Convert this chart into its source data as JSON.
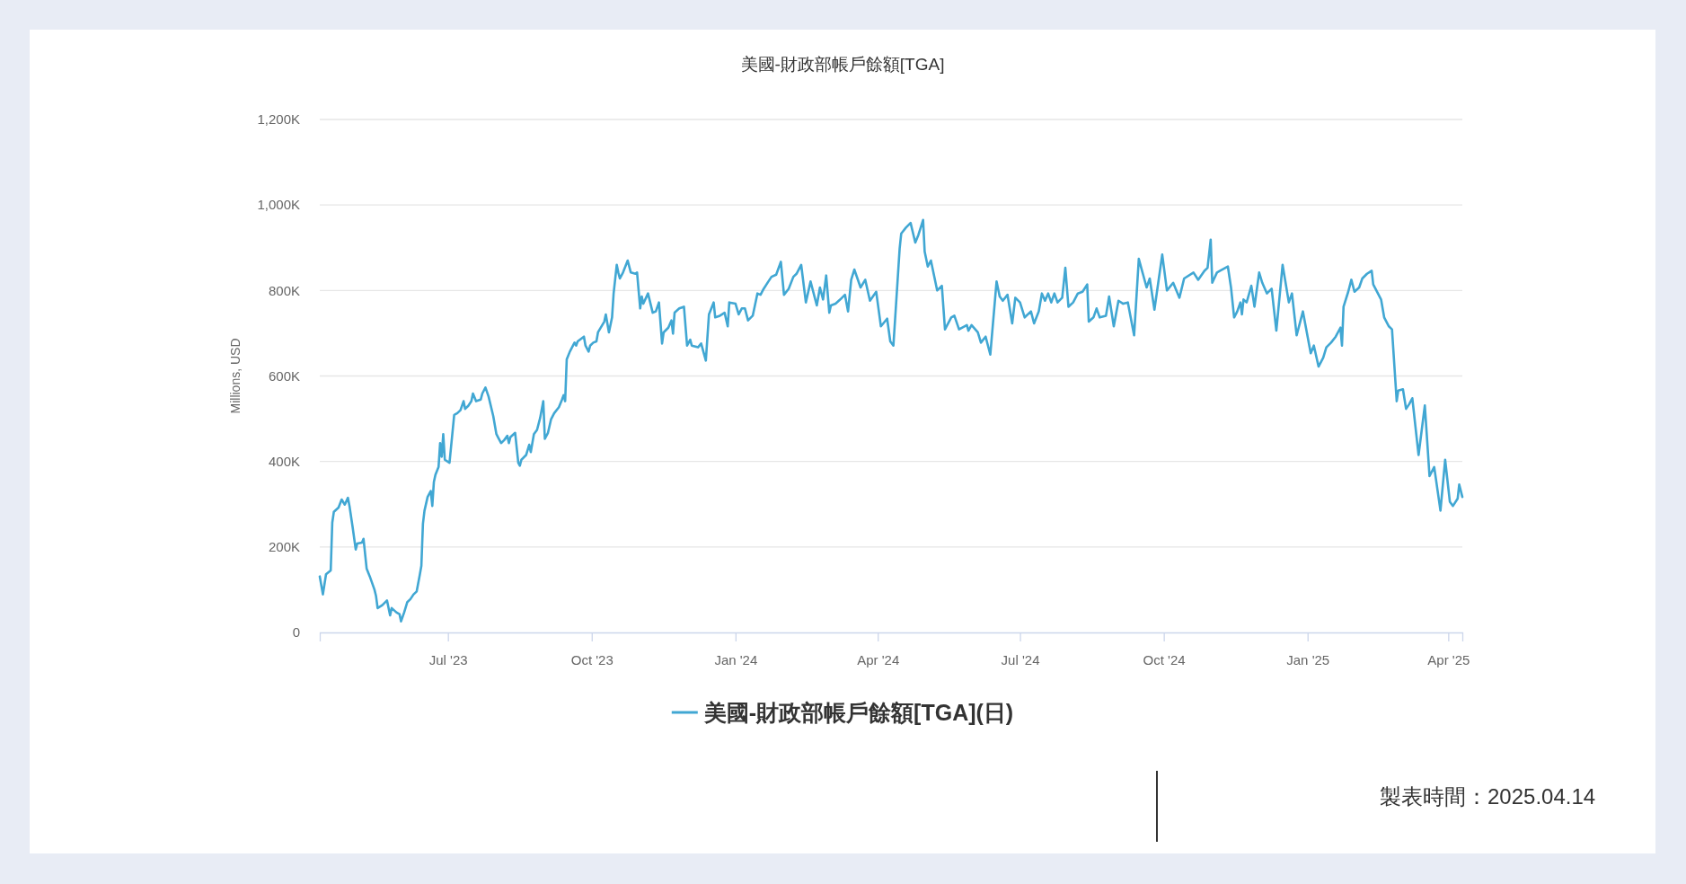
{
  "chart_data": {
    "type": "line",
    "title": "美國-財政部帳戶餘額[TGA]",
    "ylabel": "Millions, USD",
    "annotations": [
      "製表時間：2025.04.14"
    ],
    "x": [
      "2023-04-10",
      "2023-04-12",
      "2023-04-14",
      "2023-04-17",
      "2023-04-18",
      "2023-04-19",
      "2023-04-22",
      "2023-04-24",
      "2023-04-26",
      "2023-04-28",
      "2023-04-29",
      "2023-05-01",
      "2023-05-03",
      "2023-05-04",
      "2023-05-07",
      "2023-05-08",
      "2023-05-10",
      "2023-05-12",
      "2023-05-15",
      "2023-05-16",
      "2023-05-17",
      "2023-05-20",
      "2023-05-23",
      "2023-05-25",
      "2023-05-26",
      "2023-05-29",
      "2023-05-31",
      "2023-06-01",
      "2023-06-03",
      "2023-06-05",
      "2023-06-07",
      "2023-06-09",
      "2023-06-11",
      "2023-06-13",
      "2023-06-14",
      "2023-06-15",
      "2023-06-16",
      "2023-06-18",
      "2023-06-20",
      "2023-06-21",
      "2023-06-22",
      "2023-06-23",
      "2023-06-25",
      "2023-06-26",
      "2023-06-27",
      "2023-06-28",
      "2023-06-29",
      "2023-07-02",
      "2023-07-05",
      "2023-07-07",
      "2023-07-09",
      "2023-07-11",
      "2023-07-12",
      "2023-07-14",
      "2023-07-16",
      "2023-07-17",
      "2023-07-19",
      "2023-07-22",
      "2023-07-23",
      "2023-07-25",
      "2023-07-27",
      "2023-07-30",
      "2023-08-01",
      "2023-08-02",
      "2023-08-04",
      "2023-08-06",
      "2023-08-08",
      "2023-08-09",
      "2023-08-10",
      "2023-08-13",
      "2023-08-15",
      "2023-08-16",
      "2023-08-17",
      "2023-08-20",
      "2023-08-22",
      "2023-08-23",
      "2023-08-24",
      "2023-08-25",
      "2023-08-27",
      "2023-08-29",
      "2023-08-31",
      "2023-09-01",
      "2023-09-03",
      "2023-09-05",
      "2023-09-07",
      "2023-09-10",
      "2023-09-12",
      "2023-09-13",
      "2023-09-14",
      "2023-09-15",
      "2023-09-17",
      "2023-09-19",
      "2023-09-20",
      "2023-09-21",
      "2023-09-22",
      "2023-09-26",
      "2023-09-27",
      "2023-09-29",
      "2023-09-30",
      "2023-10-02",
      "2023-10-04",
      "2023-10-05",
      "2023-10-09",
      "2023-10-10",
      "2023-10-12",
      "2023-10-14",
      "2023-10-15",
      "2023-10-17",
      "2023-10-18",
      "2023-10-19",
      "2023-10-21",
      "2023-10-24",
      "2023-10-26",
      "2023-10-29",
      "2023-10-30",
      "2023-11-01",
      "2023-11-02",
      "2023-11-03",
      "2023-11-06",
      "2023-11-09",
      "2023-11-11",
      "2023-11-13",
      "2023-11-15",
      "2023-11-16",
      "2023-11-19",
      "2023-11-21",
      "2023-11-22",
      "2023-11-23",
      "2023-11-26",
      "2023-11-29",
      "2023-12-01",
      "2023-12-03",
      "2023-12-04",
      "2023-12-08",
      "2023-12-10",
      "2023-12-13",
      "2023-12-15",
      "2023-12-18",
      "2023-12-19",
      "2023-12-22",
      "2023-12-25",
      "2023-12-27",
      "2023-12-28",
      "2024-01-01",
      "2024-01-03",
      "2024-01-05",
      "2024-01-07",
      "2024-01-09",
      "2024-01-12",
      "2024-01-15",
      "2024-01-17",
      "2024-01-19",
      "2024-01-22",
      "2024-01-24",
      "2024-01-27",
      "2024-01-30",
      "2024-02-01",
      "2024-02-04",
      "2024-02-07",
      "2024-02-09",
      "2024-02-12",
      "2024-02-15",
      "2024-02-18",
      "2024-02-22",
      "2024-02-24",
      "2024-02-26",
      "2024-02-28",
      "2024-03-01",
      "2024-03-02",
      "2024-03-05",
      "2024-03-08",
      "2024-03-11",
      "2024-03-13",
      "2024-03-15",
      "2024-03-17",
      "2024-03-21",
      "2024-03-24",
      "2024-03-27",
      "2024-03-31",
      "2024-04-03",
      "2024-04-07",
      "2024-04-09",
      "2024-04-11",
      "2024-04-15",
      "2024-04-16",
      "2024-04-19",
      "2024-04-22",
      "2024-04-25",
      "2024-04-27",
      "2024-04-30",
      "2024-05-01",
      "2024-05-03",
      "2024-05-05",
      "2024-05-09",
      "2024-05-12",
      "2024-05-14",
      "2024-05-18",
      "2024-05-20",
      "2024-05-23",
      "2024-05-28",
      "2024-05-29",
      "2024-05-31",
      "2024-06-04",
      "2024-06-06",
      "2024-06-09",
      "2024-06-12",
      "2024-06-16",
      "2024-06-18",
      "2024-06-20",
      "2024-06-23",
      "2024-06-26",
      "2024-06-28",
      "2024-07-01",
      "2024-07-04",
      "2024-07-08",
      "2024-07-10",
      "2024-07-13",
      "2024-07-15",
      "2024-07-17",
      "2024-07-19",
      "2024-07-21",
      "2024-07-23",
      "2024-07-25",
      "2024-07-28",
      "2024-07-30",
      "2024-08-01",
      "2024-08-04",
      "2024-08-07",
      "2024-08-10",
      "2024-08-13",
      "2024-08-14",
      "2024-08-17",
      "2024-08-19",
      "2024-08-21",
      "2024-08-25",
      "2024-08-27",
      "2024-08-30",
      "2024-09-02",
      "2024-09-05",
      "2024-09-08",
      "2024-09-12",
      "2024-09-15",
      "2024-09-20",
      "2024-09-22",
      "2024-09-25",
      "2024-09-30",
      "2024-10-03",
      "2024-10-07",
      "2024-10-11",
      "2024-10-14",
      "2024-10-20",
      "2024-10-23",
      "2024-10-27",
      "2024-10-29",
      "2024-10-31",
      "2024-11-01",
      "2024-11-04",
      "2024-11-06",
      "2024-11-11",
      "2024-11-13",
      "2024-11-15",
      "2024-11-17",
      "2024-11-19",
      "2024-11-20",
      "2024-11-21",
      "2024-11-23",
      "2024-11-26",
      "2024-11-28",
      "2024-12-01",
      "2024-12-03",
      "2024-12-06",
      "2024-12-09",
      "2024-12-12",
      "2024-12-16",
      "2024-12-20",
      "2024-12-22",
      "2024-12-25",
      "2024-12-29",
      "2025-01-03",
      "2025-01-05",
      "2025-01-08",
      "2025-01-11",
      "2025-01-13",
      "2025-01-16",
      "2025-01-19",
      "2025-01-22",
      "2025-01-23",
      "2025-01-24",
      "2025-01-27",
      "2025-01-29",
      "2025-01-31",
      "2025-02-03",
      "2025-02-05",
      "2025-02-08",
      "2025-02-11",
      "2025-02-12",
      "2025-02-17",
      "2025-02-19",
      "2025-02-22",
      "2025-02-24",
      "2025-02-27",
      "2025-02-28",
      "2025-03-03",
      "2025-03-05",
      "2025-03-07",
      "2025-03-09",
      "2025-03-13",
      "2025-03-17",
      "2025-03-20",
      "2025-03-23",
      "2025-03-27",
      "2025-03-30",
      "2025-04-02",
      "2025-04-04",
      "2025-04-07",
      "2025-04-08",
      "2025-04-10"
    ],
    "series": [
      {
        "name": "美國-財政部帳戶餘額[TGA](日)",
        "color": "#41a7d3",
        "values": [
          131000,
          89000,
          136000,
          145000,
          257000,
          282000,
          292000,
          311000,
          299000,
          315000,
          296000,
          247000,
          194000,
          208000,
          210000,
          219000,
          149000,
          131000,
          100000,
          85000,
          57000,
          64000,
          75000,
          40000,
          57000,
          47000,
          43000,
          26000,
          47000,
          71000,
          78000,
          89000,
          96000,
          135000,
          156000,
          254000,
          285000,
          317000,
          331000,
          296000,
          352000,
          369000,
          387000,
          443000,
          411000,
          464000,
          404000,
          397000,
          509000,
          513000,
          520000,
          541000,
          523000,
          530000,
          541000,
          559000,
          541000,
          545000,
          559000,
          573000,
          552000,
          506000,
          464000,
          457000,
          443000,
          450000,
          460000,
          443000,
          457000,
          467000,
          397000,
          390000,
          404000,
          415000,
          439000,
          422000,
          443000,
          464000,
          474000,
          502000,
          541000,
          453000,
          467000,
          499000,
          513000,
          527000,
          545000,
          555000,
          541000,
          639000,
          657000,
          671000,
          678000,
          671000,
          681000,
          692000,
          671000,
          657000,
          671000,
          678000,
          681000,
          702000,
          727000,
          744000,
          702000,
          737000,
          793000,
          860000,
          842000,
          828000,
          842000,
          870000,
          842000,
          839000,
          842000,
          758000,
          786000,
          769000,
          793000,
          748000,
          751000,
          772000,
          676000,
          702000,
          713000,
          730000,
          699000,
          748000,
          758000,
          762000,
          671000,
          685000,
          671000,
          667000,
          676000,
          636000,
          744000,
          772000,
          737000,
          741000,
          748000,
          716000,
          772000,
          769000,
          744000,
          758000,
          758000,
          730000,
          741000,
          793000,
          790000,
          804000,
          821000,
          832000,
          837000,
          867000,
          790000,
          804000,
          832000,
          839000,
          860000,
          772000,
          821000,
          765000,
          807000,
          779000,
          835000,
          748000,
          765000,
          769000,
          779000,
          790000,
          751000,
          825000,
          849000,
          807000,
          825000,
          776000,
          797000,
          716000,
          734000,
          681000,
          671000,
          898000,
          933000,
          947000,
          958000,
          912000,
          930000,
          965000,
          891000,
          856000,
          870000,
          800000,
          811000,
          709000,
          737000,
          741000,
          709000,
          719000,
          706000,
          719000,
          702000,
          678000,
          692000,
          650000,
          821000,
          786000,
          776000,
          790000,
          723000,
          783000,
          772000,
          737000,
          751000,
          723000,
          751000,
          793000,
          776000,
          793000,
          772000,
          793000,
          772000,
          783000,
          853000,
          762000,
          772000,
          793000,
          797000,
          814000,
          727000,
          737000,
          758000,
          737000,
          741000,
          786000,
          716000,
          776000,
          769000,
          772000,
          695000,
          874000,
          807000,
          828000,
          755000,
          884000,
          800000,
          818000,
          783000,
          828000,
          842000,
          825000,
          846000,
          853000,
          919000,
          818000,
          842000,
          846000,
          856000,
          807000,
          737000,
          751000,
          772000,
          744000,
          779000,
          772000,
          811000,
          762000,
          842000,
          818000,
          793000,
          804000,
          706000,
          860000,
          772000,
          793000,
          695000,
          751000,
          653000,
          671000,
          622000,
          643000,
          667000,
          678000,
          692000,
          713000,
          671000,
          762000,
          797000,
          825000,
          797000,
          807000,
          828000,
          839000,
          846000,
          814000,
          779000,
          737000,
          716000,
          709000,
          541000,
          566000,
          569000,
          523000,
          534000,
          548000,
          415000,
          531000,
          366000,
          387000,
          285000,
          404000,
          306000,
          296000,
          313000,
          346000,
          317000
        ]
      }
    ],
    "xlim": [
      "2023-04-10",
      "2025-04-10"
    ],
    "xticks": [
      {
        "value": "2023-07-01",
        "label": "Jul '23"
      },
      {
        "value": "2023-10-01",
        "label": "Oct '23"
      },
      {
        "value": "2024-01-01",
        "label": "Jan '24"
      },
      {
        "value": "2024-04-01",
        "label": "Apr '24"
      },
      {
        "value": "2024-07-01",
        "label": "Jul '24"
      },
      {
        "value": "2024-10-01",
        "label": "Oct '24"
      },
      {
        "value": "2025-01-01",
        "label": "Jan '25"
      },
      {
        "value": "2025-04-01",
        "label": "Apr '25"
      }
    ],
    "ylim": [
      0,
      1200000
    ],
    "yticks": [
      0,
      {
        "value": 200000,
        "label": "200K"
      },
      {
        "value": 400000,
        "label": "400K"
      },
      {
        "value": 600000,
        "label": "600K"
      },
      {
        "value": 800000,
        "label": "800K"
      },
      {
        "value": 1000000,
        "label": "1,000K"
      },
      {
        "value": 1200000,
        "label": "1,200K"
      }
    ],
    "grid": "y",
    "legend": "bottom"
  }
}
